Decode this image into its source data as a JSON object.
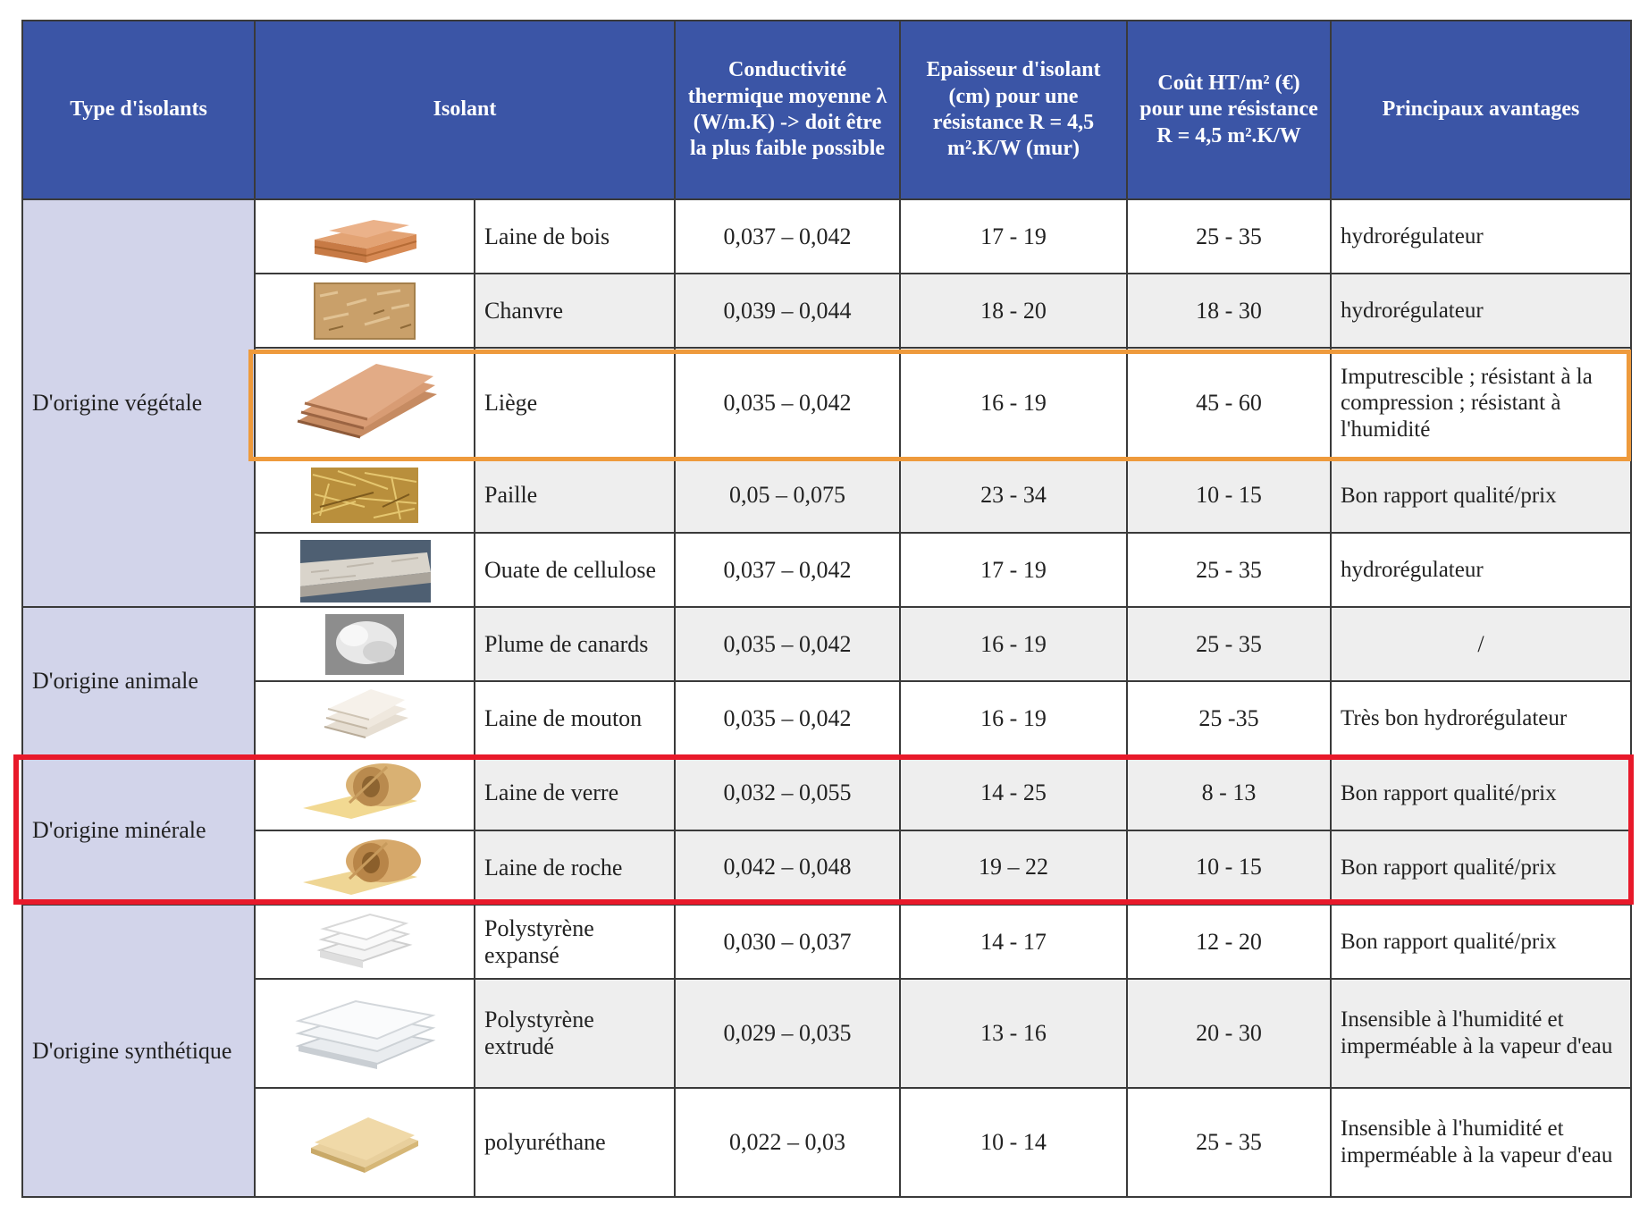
{
  "header": {
    "type": "Type d'isolants",
    "isolant": "Isolant",
    "conductivite": "Conductivité thermique moyenne λ (W/m.K) -> doit être la plus faible possible",
    "epaisseur": "Epaisseur d'isolant (cm) pour une résistance R = 4,5 m².K/W (mur)",
    "cout": "Coût HT/m² (€) pour une résistance R = 4,5 m².K/W",
    "avantages": "Principaux avantages"
  },
  "groups": [
    {
      "label": "D'origine végétale"
    },
    {
      "label": "D'origine animale"
    },
    {
      "label": "D'origine minérale"
    },
    {
      "label": "D'origine synthétique"
    }
  ],
  "rows": [
    {
      "name": "Laine de bois",
      "conductivite": "0,037 – 0,042",
      "epaisseur": "17 - 19",
      "cout": "25 - 35",
      "avantages": "hydrorégulateur"
    },
    {
      "name": "Chanvre",
      "conductivite": "0,039 – 0,044",
      "epaisseur": "18 - 20",
      "cout": "18 - 30",
      "avantages": "hydrorégulateur"
    },
    {
      "name": "Liège",
      "conductivite": "0,035 – 0,042",
      "epaisseur": "16 - 19",
      "cout": "45 - 60",
      "avantages": "Imputrescible ; résistant à la compression ; résistant à l'humidité"
    },
    {
      "name": "Paille",
      "conductivite": "0,05 – 0,075",
      "epaisseur": "23 - 34",
      "cout": "10 - 15",
      "avantages": "Bon rapport qualité/prix"
    },
    {
      "name": "Ouate de cellulose",
      "conductivite": "0,037 – 0,042",
      "epaisseur": "17 - 19",
      "cout": "25 - 35",
      "avantages": "hydrorégulateur"
    },
    {
      "name": "Plume de canards",
      "conductivite": "0,035 – 0,042",
      "epaisseur": "16 - 19",
      "cout": "25 - 35",
      "avantages": "/"
    },
    {
      "name": "Laine de mouton",
      "conductivite": "0,035 – 0,042",
      "epaisseur": "16 - 19",
      "cout": "25 -35",
      "avantages": "Très bon hydrorégulateur"
    },
    {
      "name": "Laine de verre",
      "conductivite": "0,032 – 0,055",
      "epaisseur": "14 - 25",
      "cout": "8 - 13",
      "avantages": "Bon rapport qualité/prix"
    },
    {
      "name": "Laine de roche",
      "conductivite": "0,042 – 0,048",
      "epaisseur": "19 – 22",
      "cout": "10 - 15",
      "avantages": "Bon rapport qualité/prix"
    },
    {
      "name": "Polystyrène expansé",
      "conductivite": "0,030 – 0,037",
      "epaisseur": "14 - 17",
      "cout": "12 - 20",
      "avantages": "Bon rapport qualité/prix"
    },
    {
      "name": "Polystyrène extrudé",
      "conductivite": "0,029 – 0,035",
      "epaisseur": "13 - 16",
      "cout": "20 - 30",
      "avantages": "Insensible à l'humidité et imperméable à la vapeur d'eau"
    },
    {
      "name": "polyuréthane",
      "conductivite": "0,022 – 0,03",
      "epaisseur": "10 - 14",
      "cout": "25 - 35",
      "avantages": "Insensible à l'humidité et imperméable à la vapeur d'eau"
    }
  ],
  "colors": {
    "header_bg": "#3b55a6",
    "type_bg": "#d2d4ea",
    "highlight_orange": "#ee9a3c",
    "highlight_red": "#e8192a"
  }
}
